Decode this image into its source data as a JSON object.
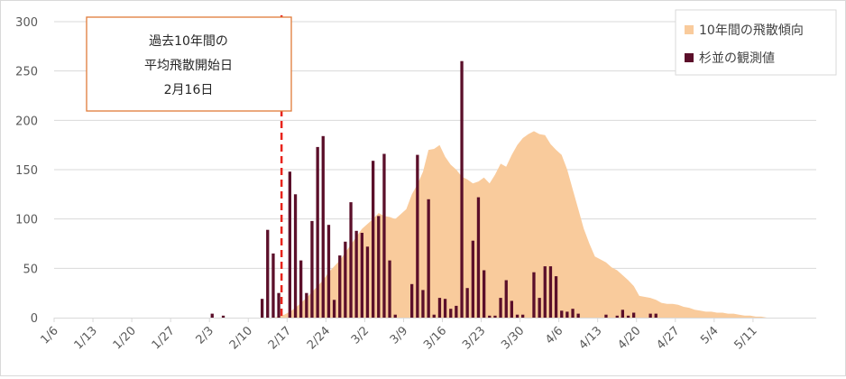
{
  "chart_data": {
    "type": "bar+area",
    "title": "",
    "xlabel": "",
    "ylabel": "",
    "ylim": [
      0,
      300
    ],
    "y_ticks": [
      "0",
      "50",
      "100",
      "150",
      "200",
      "250",
      "300"
    ],
    "x_tick_labels": [
      "1/6",
      "1/13",
      "1/20",
      "1/27",
      "2/3",
      "2/10",
      "2/17",
      "2/24",
      "3/2",
      "3/9",
      "3/16",
      "3/23",
      "3/30",
      "4/6",
      "4/13",
      "4/20",
      "4/27",
      "5/4",
      "5/11"
    ],
    "grid": true,
    "legend_position": "top-right",
    "legend": [
      {
        "label": "10年間の飛散傾向",
        "color": "#f9cb9c"
      },
      {
        "label": "杉並の観測値",
        "color": "#5b0f2a"
      }
    ],
    "annotation": {
      "lines": [
        "過去10年間の",
        "平均飛散開始日",
        "2月16日"
      ],
      "date": "2/16",
      "line_color": "#e8231b",
      "box_border_color": "#e07b39"
    },
    "series": [
      {
        "name": "10年間の飛散傾向",
        "kind": "area",
        "color": "#f9cb9c",
        "points": [
          [
            "2/14",
            0
          ],
          [
            "2/15",
            1
          ],
          [
            "2/16",
            3
          ],
          [
            "2/17",
            6
          ],
          [
            "2/18",
            10
          ],
          [
            "2/19",
            15
          ],
          [
            "2/20",
            20
          ],
          [
            "2/21",
            26
          ],
          [
            "2/22",
            32
          ],
          [
            "2/23",
            38
          ],
          [
            "2/24",
            46
          ],
          [
            "2/25",
            52
          ],
          [
            "2/26",
            58
          ],
          [
            "2/27",
            66
          ],
          [
            "2/28",
            74
          ],
          [
            "3/1",
            82
          ],
          [
            "3/2",
            90
          ],
          [
            "3/3",
            95
          ],
          [
            "3/4",
            100
          ],
          [
            "3/5",
            106
          ],
          [
            "3/6",
            103
          ],
          [
            "3/7",
            102
          ],
          [
            "3/8",
            100
          ],
          [
            "3/9",
            105
          ],
          [
            "3/10",
            110
          ],
          [
            "3/11",
            125
          ],
          [
            "3/12",
            135
          ],
          [
            "3/13",
            148
          ],
          [
            "3/14",
            170
          ],
          [
            "3/15",
            171
          ],
          [
            "3/16",
            175
          ],
          [
            "3/17",
            163
          ],
          [
            "3/18",
            155
          ],
          [
            "3/19",
            150
          ],
          [
            "3/20",
            143
          ],
          [
            "3/21",
            140
          ],
          [
            "3/22",
            136
          ],
          [
            "3/23",
            138
          ],
          [
            "3/24",
            142
          ],
          [
            "3/25",
            136
          ],
          [
            "3/26",
            145
          ],
          [
            "3/27",
            156
          ],
          [
            "3/28",
            153
          ],
          [
            "3/29",
            165
          ],
          [
            "3/30",
            175
          ],
          [
            "3/31",
            182
          ],
          [
            "4/1",
            186
          ],
          [
            "4/2",
            189
          ],
          [
            "4/3",
            186
          ],
          [
            "4/4",
            185
          ],
          [
            "4/5",
            176
          ],
          [
            "4/6",
            170
          ],
          [
            "4/7",
            165
          ],
          [
            "4/8",
            150
          ],
          [
            "4/9",
            130
          ],
          [
            "4/10",
            110
          ],
          [
            "4/11",
            90
          ],
          [
            "4/12",
            75
          ],
          [
            "4/13",
            62
          ],
          [
            "4/14",
            59
          ],
          [
            "4/15",
            56
          ],
          [
            "4/16",
            51
          ],
          [
            "4/17",
            48
          ],
          [
            "4/18",
            43
          ],
          [
            "4/19",
            38
          ],
          [
            "4/20",
            32
          ],
          [
            "4/21",
            22
          ],
          [
            "4/22",
            21
          ],
          [
            "4/23",
            20
          ],
          [
            "4/24",
            18
          ],
          [
            "4/25",
            15
          ],
          [
            "4/26",
            14
          ],
          [
            "4/27",
            14
          ],
          [
            "4/28",
            13
          ],
          [
            "4/29",
            11
          ],
          [
            "4/30",
            10
          ],
          [
            "5/1",
            8
          ],
          [
            "5/2",
            7
          ],
          [
            "5/3",
            6
          ],
          [
            "5/4",
            6
          ],
          [
            "5/5",
            5
          ],
          [
            "5/6",
            5
          ],
          [
            "5/7",
            4
          ],
          [
            "5/8",
            4
          ],
          [
            "5/9",
            3
          ],
          [
            "5/10",
            2
          ],
          [
            "5/11",
            2
          ],
          [
            "5/12",
            1
          ],
          [
            "5/13",
            1
          ],
          [
            "5/14",
            0
          ]
        ]
      },
      {
        "name": "杉並の観測値",
        "kind": "bar",
        "color": "#5b0f2a",
        "points": [
          [
            "2/3",
            4
          ],
          [
            "2/5",
            2
          ],
          [
            "2/12",
            19
          ],
          [
            "2/13",
            89
          ],
          [
            "2/14",
            65
          ],
          [
            "2/15",
            25
          ],
          [
            "2/17",
            148
          ],
          [
            "2/18",
            125
          ],
          [
            "2/19",
            58
          ],
          [
            "2/20",
            25
          ],
          [
            "2/21",
            98
          ],
          [
            "2/22",
            173
          ],
          [
            "2/23",
            184
          ],
          [
            "2/24",
            94
          ],
          [
            "2/25",
            18
          ],
          [
            "2/26",
            63
          ],
          [
            "2/27",
            77
          ],
          [
            "2/28",
            117
          ],
          [
            "3/1",
            88
          ],
          [
            "3/2",
            86
          ],
          [
            "3/3",
            72
          ],
          [
            "3/4",
            159
          ],
          [
            "3/5",
            103
          ],
          [
            "3/6",
            166
          ],
          [
            "3/7",
            58
          ],
          [
            "3/8",
            3
          ],
          [
            "3/11",
            34
          ],
          [
            "3/12",
            165
          ],
          [
            "3/13",
            28
          ],
          [
            "3/14",
            120
          ],
          [
            "3/15",
            3
          ],
          [
            "3/16",
            20
          ],
          [
            "3/17",
            19
          ],
          [
            "3/18",
            9
          ],
          [
            "3/19",
            12
          ],
          [
            "3/20",
            260
          ],
          [
            "3/21",
            30
          ],
          [
            "3/22",
            78
          ],
          [
            "3/23",
            122
          ],
          [
            "3/24",
            48
          ],
          [
            "3/25",
            2
          ],
          [
            "3/26",
            2
          ],
          [
            "3/27",
            20
          ],
          [
            "3/28",
            38
          ],
          [
            "3/29",
            17
          ],
          [
            "3/30",
            3
          ],
          [
            "3/31",
            3
          ],
          [
            "4/2",
            46
          ],
          [
            "4/3",
            20
          ],
          [
            "4/4",
            52
          ],
          [
            "4/5",
            52
          ],
          [
            "4/6",
            42
          ],
          [
            "4/7",
            7
          ],
          [
            "4/8",
            6
          ],
          [
            "4/9",
            9
          ],
          [
            "4/10",
            4
          ],
          [
            "4/15",
            3
          ],
          [
            "4/17",
            2
          ],
          [
            "4/18",
            8
          ],
          [
            "4/19",
            2
          ],
          [
            "4/20",
            5
          ],
          [
            "4/23",
            4
          ],
          [
            "4/24",
            4
          ]
        ]
      }
    ]
  }
}
